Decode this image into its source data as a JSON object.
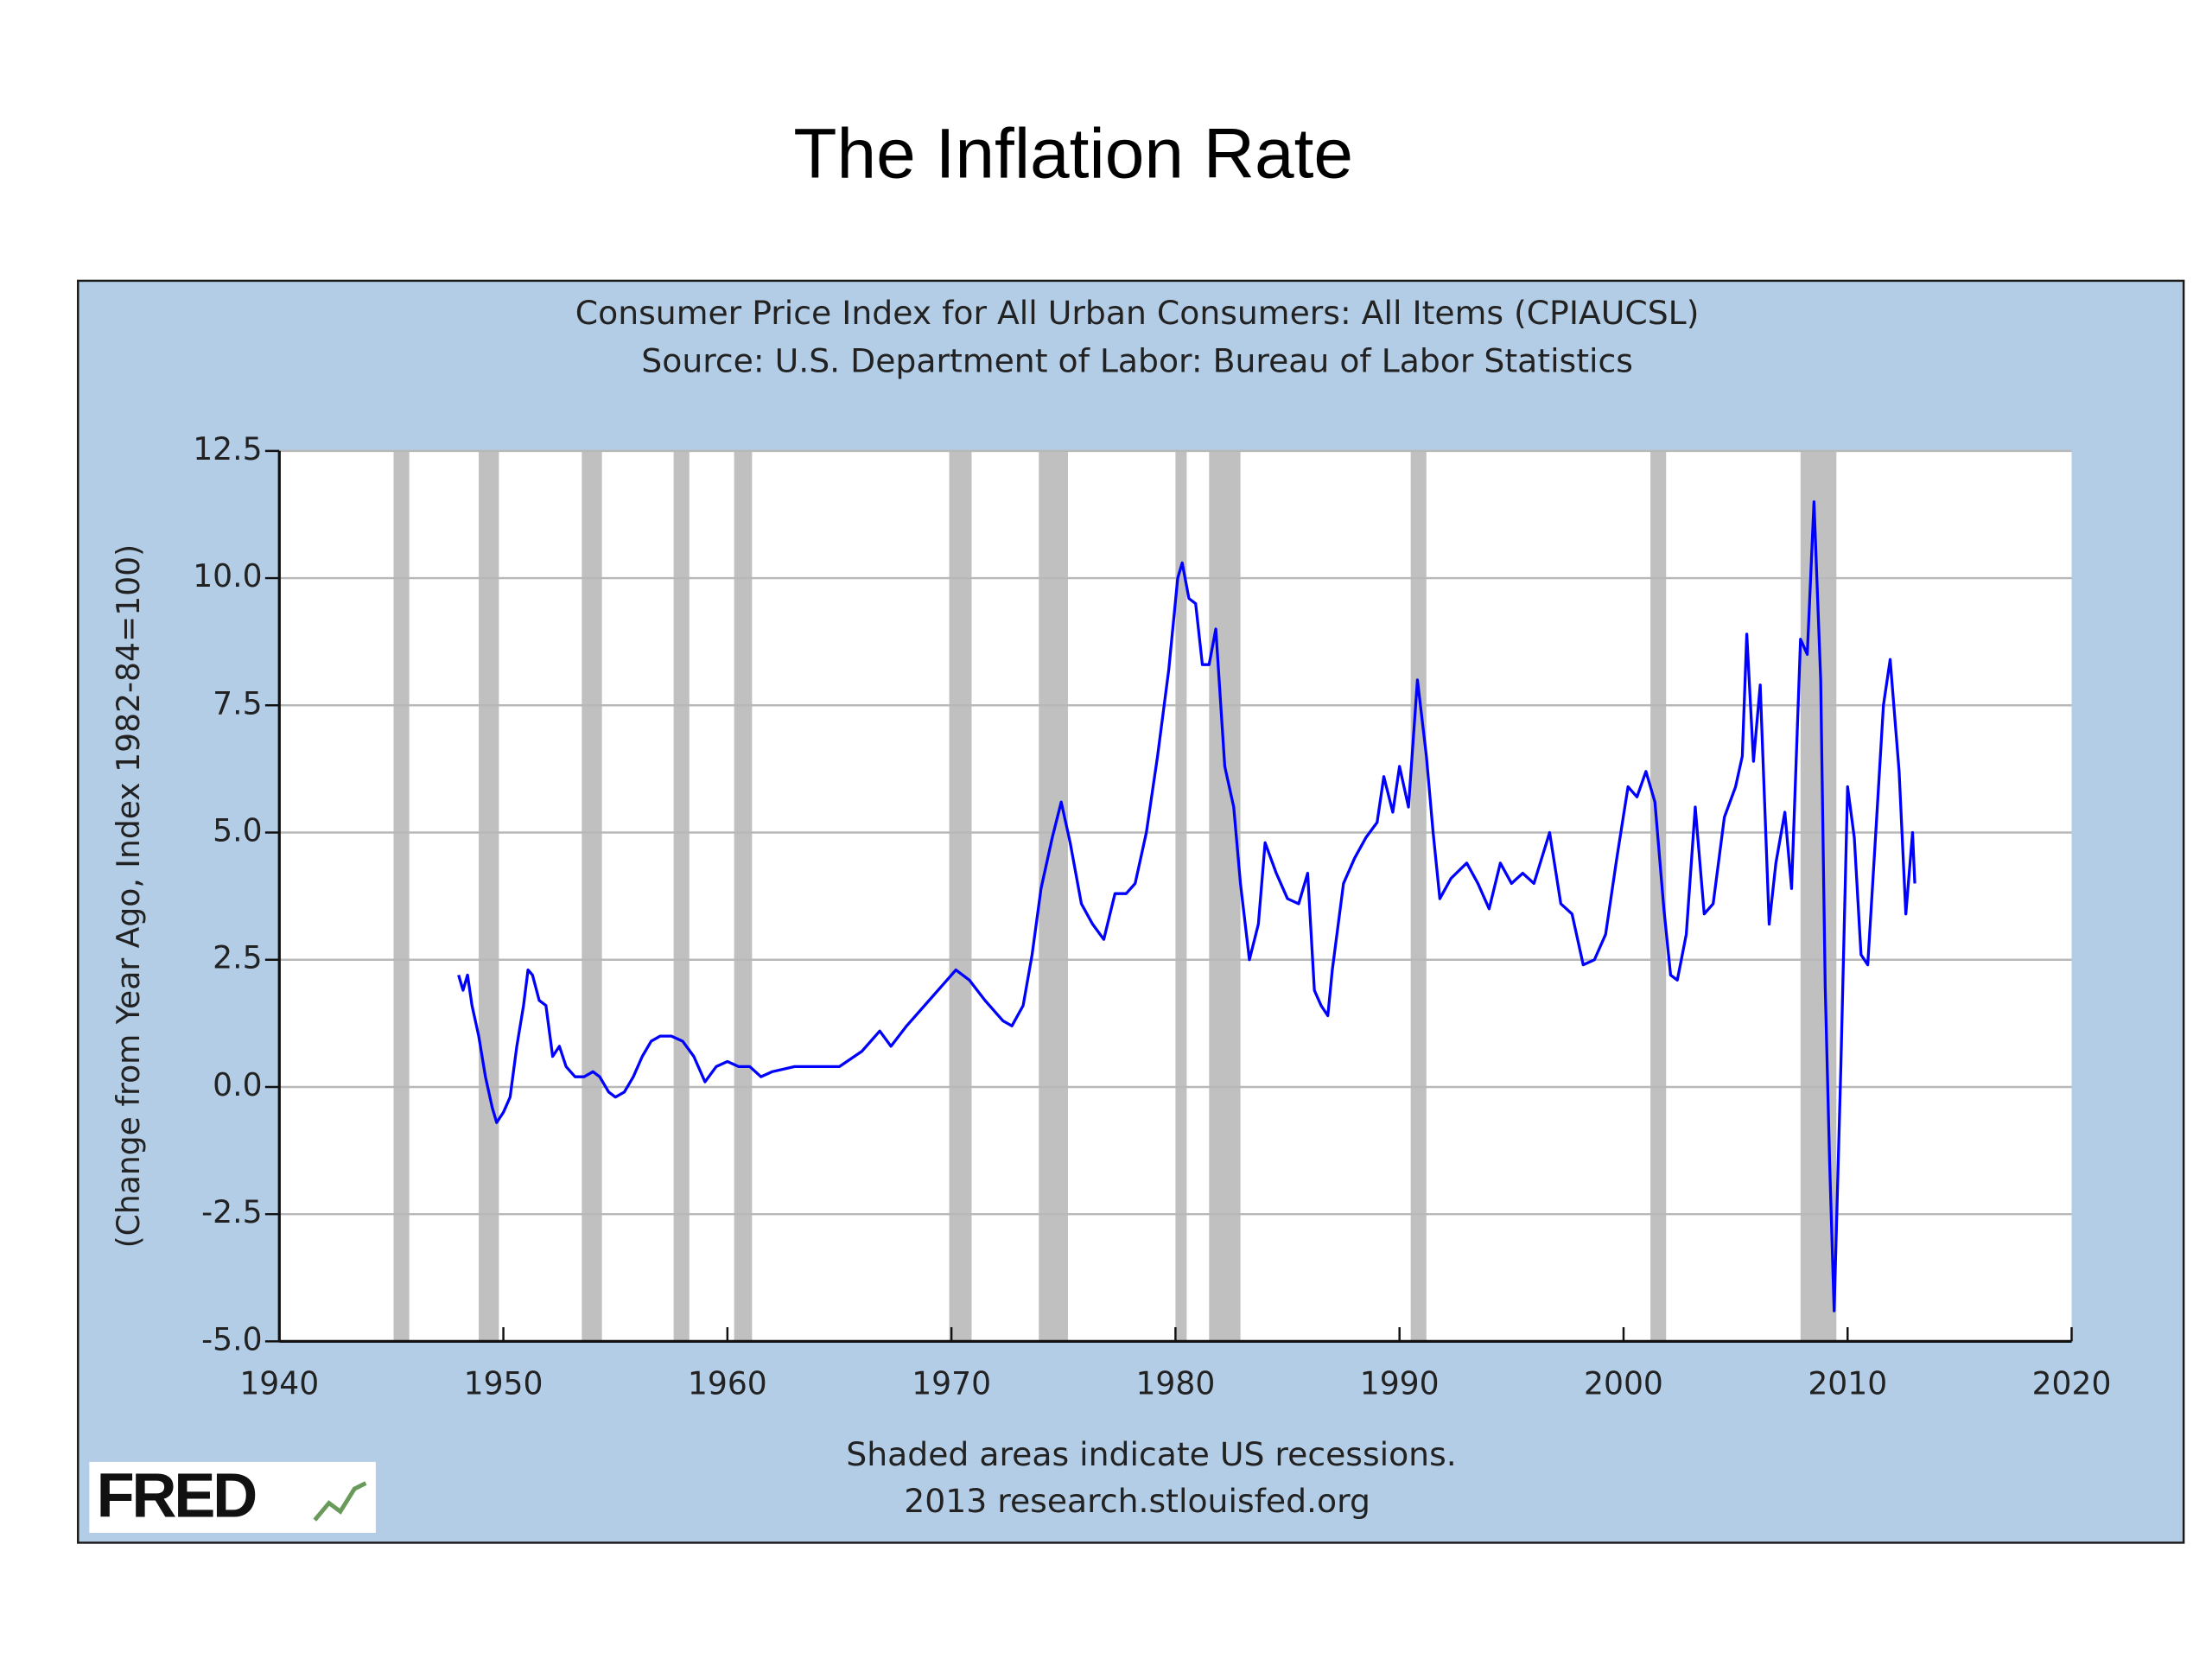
{
  "slide_title": "The Inflation Rate",
  "chart_data": {
    "type": "line",
    "title": "Consumer Price Index for All Urban Consumers: All Items (CPIAUCSL)",
    "subtitle": "Source: U.S. Department of Labor: Bureau of Labor Statistics",
    "ylabel": "(Change from Year Ago, Index 1982-84=100)",
    "annotations": [
      "Shaded areas indicate US recessions.",
      "2013 research.stlouisfed.org"
    ],
    "logo": "FRED",
    "color": "#0000ff",
    "recession_color": "#c0c0c0",
    "grid": true,
    "xlim": [
      1940,
      2020
    ],
    "xticks": [
      1940,
      1950,
      1960,
      1970,
      1980,
      1990,
      2000,
      2010,
      2020
    ],
    "ylim": [
      -5,
      12.5
    ],
    "yticks": [
      {
        "value": -5,
        "label": "-5.0"
      },
      -2.5,
      {
        "value": 0,
        "label": "0.0"
      },
      2.5,
      {
        "value": 5,
        "label": "5.0"
      },
      7.5,
      {
        "value": 10,
        "label": "10.0"
      },
      12.5
    ],
    "recessions": [
      [
        1945.1,
        1945.8
      ],
      [
        1948.9,
        1949.8
      ],
      [
        1953.5,
        1954.4
      ],
      [
        1957.6,
        1958.3
      ],
      [
        1960.3,
        1961.1
      ],
      [
        1969.9,
        1970.9
      ],
      [
        1973.9,
        1975.2
      ],
      [
        1980.0,
        1980.5
      ],
      [
        1981.5,
        1982.9
      ],
      [
        1990.5,
        1991.2
      ],
      [
        2001.2,
        2001.9
      ],
      [
        2007.9,
        2009.5
      ]
    ],
    "x": [
      1948.0,
      1948.2,
      1948.4,
      1948.6,
      1948.9,
      1949.2,
      1949.5,
      1949.7,
      1950.0,
      1950.3,
      1950.6,
      1950.9,
      1951.1,
      1951.3,
      1951.6,
      1951.9,
      1952.2,
      1952.5,
      1952.8,
      1953.2,
      1953.6,
      1954.0,
      1954.3,
      1954.7,
      1955.0,
      1955.4,
      1955.8,
      1956.2,
      1956.6,
      1957.0,
      1957.5,
      1958.0,
      1958.5,
      1959.0,
      1959.5,
      1960.0,
      1960.5,
      1961.0,
      1961.5,
      1962.0,
      1963.0,
      1964.0,
      1965.0,
      1966.0,
      1966.8,
      1967.3,
      1968.0,
      1969.0,
      1969.8,
      1970.2,
      1970.8,
      1971.5,
      1972.3,
      1972.7,
      1973.2,
      1973.6,
      1974.0,
      1974.5,
      1974.9,
      1975.3,
      1975.8,
      1976.3,
      1976.8,
      1977.3,
      1977.8,
      1978.2,
      1978.7,
      1979.2,
      1979.7,
      1980.1,
      1980.3,
      1980.6,
      1980.9,
      1981.2,
      1981.5,
      1981.8,
      1982.2,
      1982.6,
      1982.9,
      1983.3,
      1983.7,
      1984.0,
      1984.5,
      1985.0,
      1985.5,
      1985.9,
      1986.2,
      1986.5,
      1986.8,
      1987.0,
      1987.5,
      1988.0,
      1988.5,
      1989.0,
      1989.3,
      1989.7,
      1990.0,
      1990.4,
      1990.8,
      1991.2,
      1991.5,
      1991.8,
      1992.3,
      1993.0,
      1993.5,
      1994.0,
      1994.5,
      1995.0,
      1995.5,
      1996.0,
      1996.7,
      1997.2,
      1997.7,
      1998.2,
      1998.7,
      1999.2,
      1999.7,
      2000.2,
      2000.6,
      2001.0,
      2001.4,
      2001.8,
      2002.1,
      2002.4,
      2002.8,
      2003.2,
      2003.6,
      2004.0,
      2004.5,
      2005.0,
      2005.3,
      2005.5,
      2005.8,
      2006.1,
      2006.5,
      2006.8,
      2007.2,
      2007.5,
      2007.9,
      2008.2,
      2008.5,
      2008.8,
      2009.0,
      2009.2,
      2009.4,
      2009.7,
      2010.0,
      2010.3,
      2010.6,
      2010.9,
      2011.3,
      2011.6,
      2011.9,
      2012.3,
      2012.6,
      2012.9,
      2013.0
    ],
    "values": [
      2.2,
      1.9,
      2.2,
      1.6,
      1.0,
      0.2,
      -0.4,
      -0.7,
      -0.5,
      -0.2,
      0.8,
      1.6,
      2.3,
      2.2,
      1.7,
      1.6,
      0.6,
      0.8,
      0.4,
      0.2,
      0.2,
      0.3,
      0.2,
      -0.1,
      -0.2,
      -0.1,
      0.2,
      0.6,
      0.9,
      1.0,
      1.0,
      0.9,
      0.6,
      0.1,
      0.4,
      0.5,
      0.4,
      0.4,
      0.2,
      0.3,
      0.4,
      0.4,
      0.4,
      0.7,
      1.1,
      0.8,
      1.2,
      1.7,
      2.1,
      2.3,
      2.1,
      1.7,
      1.3,
      1.2,
      1.6,
      2.6,
      3.9,
      4.9,
      5.6,
      4.8,
      3.6,
      3.2,
      2.9,
      3.8,
      3.8,
      4.0,
      5.0,
      6.5,
      8.2,
      10.0,
      10.3,
      9.6,
      9.5,
      8.3,
      8.3,
      9.0,
      6.3,
      5.5,
      4.0,
      2.5,
      3.2,
      4.8,
      4.2,
      3.7,
      3.6,
      4.2,
      1.9,
      1.6,
      1.4,
      2.3,
      4.0,
      4.5,
      4.9,
      5.2,
      6.1,
      5.4,
      6.3,
      5.5,
      8.0,
      6.5,
      5.0,
      3.7,
      4.1,
      4.4,
      4.0,
      3.5,
      4.4,
      4.0,
      4.2,
      4.0,
      5.0,
      3.6,
      3.4,
      2.4,
      2.5,
      3.0,
      4.5,
      5.9,
      5.7,
      6.2,
      5.6,
      3.5,
      2.2,
      2.1,
      3.0,
      5.5,
      3.4,
      3.6,
      5.3,
      5.9,
      6.5,
      8.9,
      6.4,
      7.9,
      3.2,
      4.4,
      5.4,
      3.9,
      8.8,
      8.5,
      11.5,
      8.0,
      2.0,
      -1.5,
      -4.4,
      0.4,
      5.9,
      4.9,
      2.6,
      2.4,
      5.3,
      7.5,
      8.4,
      6.2,
      3.4,
      5.0,
      4.0
    ]
  }
}
